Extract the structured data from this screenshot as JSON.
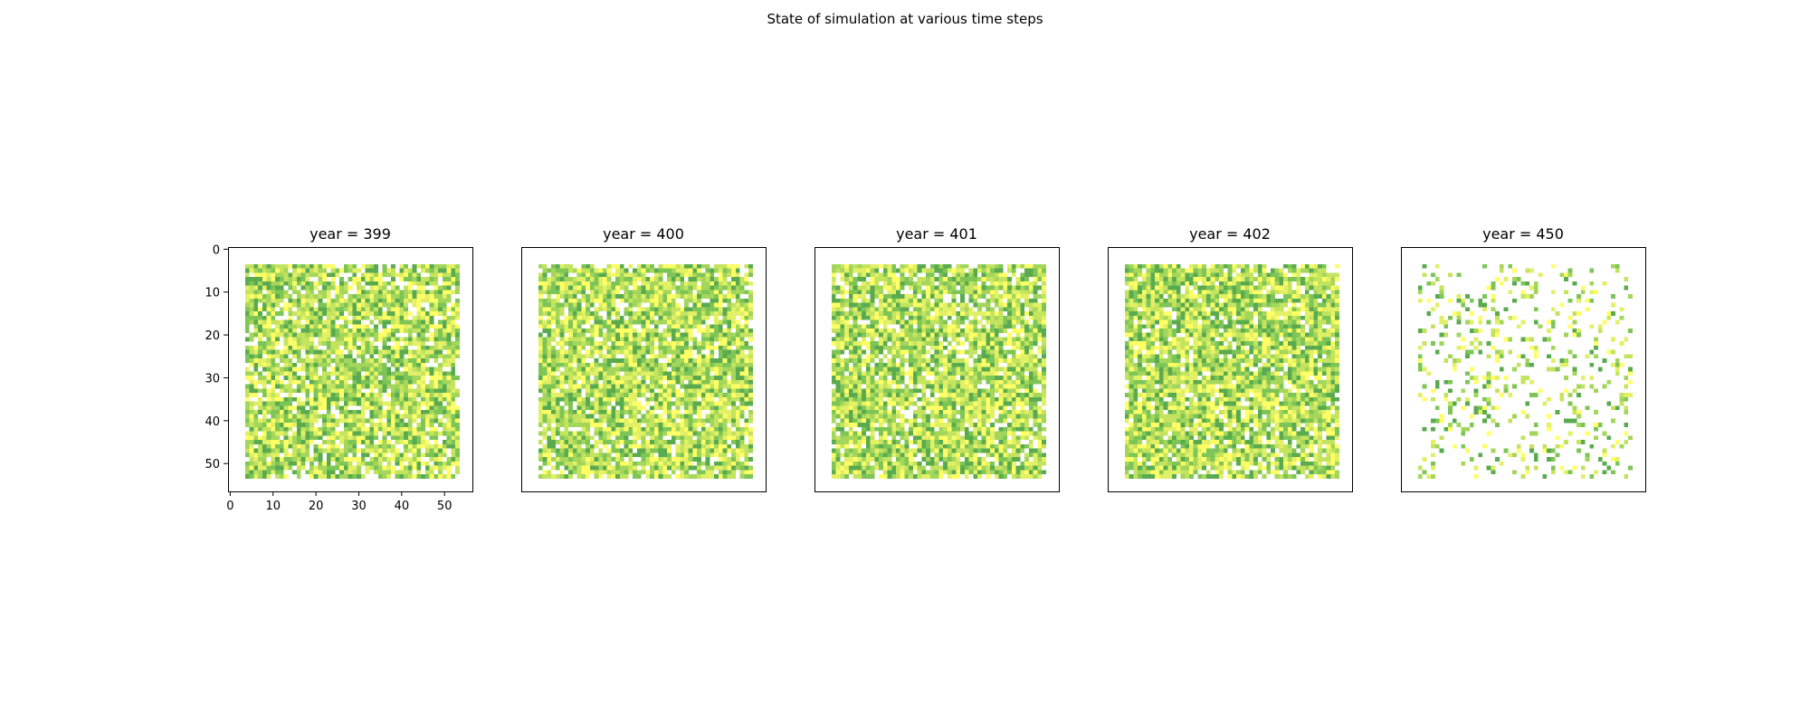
{
  "figure": {
    "title": "State of simulation at various time steps"
  },
  "chart_data": {
    "type": "heatmap",
    "title": "State of simulation at various time steps",
    "grid_size": 57,
    "occupied_range": [
      4,
      53
    ],
    "axis_ticks": [
      0,
      10,
      20,
      30,
      40,
      50
    ],
    "xlim": [
      -0.5,
      56.5
    ],
    "ylim": [
      56.5,
      -0.5
    ],
    "colors": {
      "empty": "#ffffff",
      "levels": [
        "#ffff66",
        "#e2f066",
        "#c4e35f",
        "#a3d65a",
        "#7dc556",
        "#5aab4f"
      ]
    },
    "panels": [
      {
        "title": "year = 399",
        "show_axes": true,
        "occupancy": 0.86,
        "seed": 399
      },
      {
        "title": "year = 400",
        "show_axes": false,
        "occupancy": 0.88,
        "seed": 400
      },
      {
        "title": "year = 401",
        "show_axes": false,
        "occupancy": 0.88,
        "seed": 401
      },
      {
        "title": "year = 402",
        "show_axes": false,
        "occupancy": 0.89,
        "seed": 402
      },
      {
        "title": "year = 450",
        "show_axes": false,
        "occupancy": 0.2,
        "seed": 450
      }
    ]
  }
}
